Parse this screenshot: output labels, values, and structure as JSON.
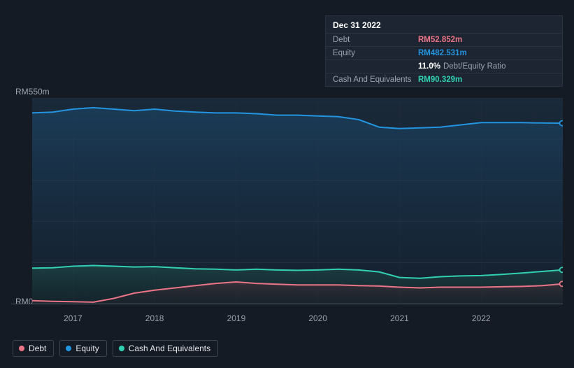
{
  "chart": {
    "background_color": "#151b24",
    "plot_gradient_top": "#1a2a3a",
    "plot_gradient_bottom": "#151b24",
    "grid_color": "#2a3340",
    "y_label_top": "RM550m",
    "y_label_bottom": "RM0",
    "y_label_color": "#9aa3ae",
    "y_label_fontsize": 12,
    "x_ticks": [
      "2017",
      "2018",
      "2019",
      "2020",
      "2021",
      "2022"
    ],
    "x_range": [
      2016.5,
      2023.0
    ],
    "y_range": [
      0,
      550
    ],
    "grid_lines_y": [
      0,
      110,
      220,
      330,
      440,
      550
    ],
    "series": {
      "equity": {
        "label": "Equity",
        "color": "#2394df",
        "fill_from": "#1b4a6f",
        "fill_to": "#16304a",
        "fill_opacity": 0.55,
        "line_width": 2,
        "data": [
          {
            "x": 2016.5,
            "y": 510
          },
          {
            "x": 2016.75,
            "y": 512
          },
          {
            "x": 2017.0,
            "y": 520
          },
          {
            "x": 2017.25,
            "y": 524
          },
          {
            "x": 2017.5,
            "y": 520
          },
          {
            "x": 2017.75,
            "y": 516
          },
          {
            "x": 2018.0,
            "y": 520
          },
          {
            "x": 2018.25,
            "y": 515
          },
          {
            "x": 2018.5,
            "y": 512
          },
          {
            "x": 2018.75,
            "y": 510
          },
          {
            "x": 2019.0,
            "y": 510
          },
          {
            "x": 2019.25,
            "y": 508
          },
          {
            "x": 2019.5,
            "y": 504
          },
          {
            "x": 2019.75,
            "y": 504
          },
          {
            "x": 2020.0,
            "y": 502
          },
          {
            "x": 2020.25,
            "y": 500
          },
          {
            "x": 2020.5,
            "y": 492
          },
          {
            "x": 2020.75,
            "y": 472
          },
          {
            "x": 2021.0,
            "y": 468
          },
          {
            "x": 2021.25,
            "y": 470
          },
          {
            "x": 2021.5,
            "y": 472
          },
          {
            "x": 2021.75,
            "y": 478
          },
          {
            "x": 2022.0,
            "y": 484
          },
          {
            "x": 2022.25,
            "y": 484
          },
          {
            "x": 2022.5,
            "y": 484
          },
          {
            "x": 2022.75,
            "y": 483
          },
          {
            "x": 2023.0,
            "y": 482.531
          }
        ]
      },
      "cash": {
        "label": "Cash And Equivalents",
        "color": "#31d0b2",
        "fill_from": "#1f5a52",
        "fill_to": "#163631",
        "fill_opacity": 0.5,
        "line_width": 2,
        "data": [
          {
            "x": 2016.5,
            "y": 95
          },
          {
            "x": 2016.75,
            "y": 96
          },
          {
            "x": 2017.0,
            "y": 100
          },
          {
            "x": 2017.25,
            "y": 102
          },
          {
            "x": 2017.5,
            "y": 100
          },
          {
            "x": 2017.75,
            "y": 98
          },
          {
            "x": 2018.0,
            "y": 99
          },
          {
            "x": 2018.25,
            "y": 96
          },
          {
            "x": 2018.5,
            "y": 93
          },
          {
            "x": 2018.75,
            "y": 92
          },
          {
            "x": 2019.0,
            "y": 90
          },
          {
            "x": 2019.25,
            "y": 92
          },
          {
            "x": 2019.5,
            "y": 90
          },
          {
            "x": 2019.75,
            "y": 89
          },
          {
            "x": 2020.0,
            "y": 90
          },
          {
            "x": 2020.25,
            "y": 92
          },
          {
            "x": 2020.5,
            "y": 90
          },
          {
            "x": 2020.75,
            "y": 85
          },
          {
            "x": 2021.0,
            "y": 70
          },
          {
            "x": 2021.25,
            "y": 68
          },
          {
            "x": 2021.5,
            "y": 72
          },
          {
            "x": 2021.75,
            "y": 74
          },
          {
            "x": 2022.0,
            "y": 75
          },
          {
            "x": 2022.25,
            "y": 78
          },
          {
            "x": 2022.5,
            "y": 82
          },
          {
            "x": 2022.75,
            "y": 86
          },
          {
            "x": 2023.0,
            "y": 90.329
          }
        ]
      },
      "debt": {
        "label": "Debt",
        "color": "#eb7487",
        "fill_from": "#5a2f3a",
        "fill_to": "#2a1c22",
        "fill_opacity": 0.45,
        "line_width": 2,
        "data": [
          {
            "x": 2016.5,
            "y": 8
          },
          {
            "x": 2016.75,
            "y": 6
          },
          {
            "x": 2017.0,
            "y": 5
          },
          {
            "x": 2017.25,
            "y": 4
          },
          {
            "x": 2017.5,
            "y": 14
          },
          {
            "x": 2017.75,
            "y": 28
          },
          {
            "x": 2018.0,
            "y": 36
          },
          {
            "x": 2018.25,
            "y": 42
          },
          {
            "x": 2018.5,
            "y": 48
          },
          {
            "x": 2018.75,
            "y": 54
          },
          {
            "x": 2019.0,
            "y": 58
          },
          {
            "x": 2019.25,
            "y": 54
          },
          {
            "x": 2019.5,
            "y": 52
          },
          {
            "x": 2019.75,
            "y": 50
          },
          {
            "x": 2020.0,
            "y": 50
          },
          {
            "x": 2020.25,
            "y": 50
          },
          {
            "x": 2020.5,
            "y": 48
          },
          {
            "x": 2020.75,
            "y": 47
          },
          {
            "x": 2021.0,
            "y": 44
          },
          {
            "x": 2021.25,
            "y": 42
          },
          {
            "x": 2021.5,
            "y": 44
          },
          {
            "x": 2021.75,
            "y": 44
          },
          {
            "x": 2022.0,
            "y": 44
          },
          {
            "x": 2022.25,
            "y": 45
          },
          {
            "x": 2022.5,
            "y": 46
          },
          {
            "x": 2022.75,
            "y": 48
          },
          {
            "x": 2023.0,
            "y": 52.852
          }
        ]
      }
    }
  },
  "tooltip": {
    "date": "Dec 31 2022",
    "rows": [
      {
        "label": "Debt",
        "value": "RM52.852m",
        "color": "#eb7487"
      },
      {
        "label": "Equity",
        "value": "RM482.531m",
        "color": "#2394df"
      },
      {
        "label": "",
        "value": "11.0%",
        "color": "#ffffff",
        "extra": "Debt/Equity Ratio"
      },
      {
        "label": "Cash And Equivalents",
        "value": "RM90.329m",
        "color": "#31d0b2"
      }
    ]
  },
  "legend": [
    {
      "label": "Debt",
      "color": "#eb7487"
    },
    {
      "label": "Equity",
      "color": "#2394df"
    },
    {
      "label": "Cash And Equivalents",
      "color": "#31d0b2"
    }
  ]
}
